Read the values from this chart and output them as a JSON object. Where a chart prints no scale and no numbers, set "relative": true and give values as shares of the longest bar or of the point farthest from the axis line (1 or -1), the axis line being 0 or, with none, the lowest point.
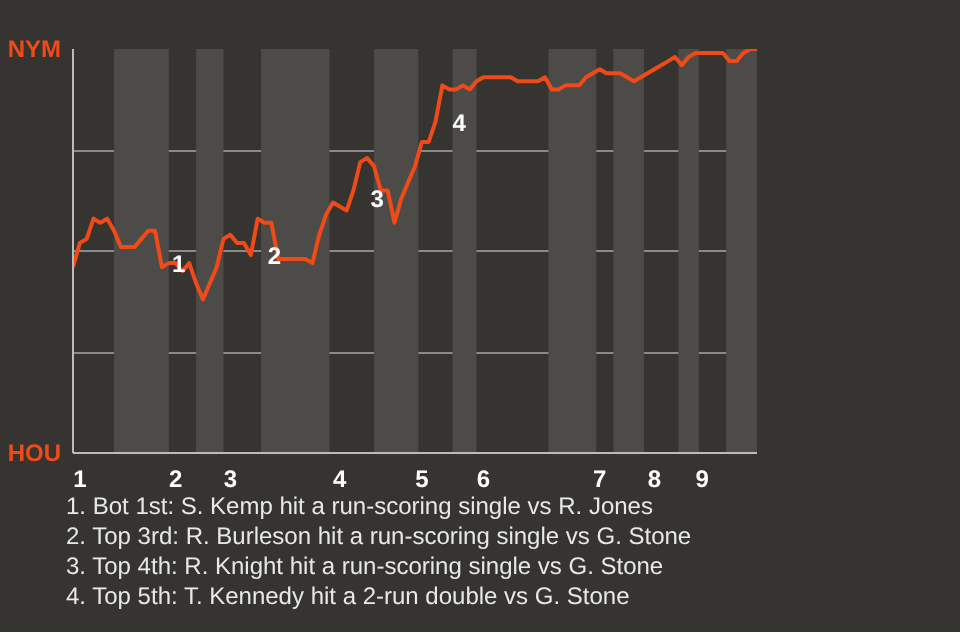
{
  "chart_data": {
    "type": "line",
    "relative": true,
    "categories": [
      null,
      "1",
      null,
      null,
      null,
      null,
      null,
      null,
      null,
      null,
      null,
      null,
      null,
      null,
      null,
      "2",
      null,
      null,
      null,
      null,
      null,
      null,
      null,
      "3",
      null,
      null,
      null,
      null,
      null,
      null,
      null,
      null,
      null,
      null,
      null,
      null,
      null,
      null,
      null,
      "4",
      null,
      null,
      null,
      null,
      null,
      null,
      null,
      null,
      null,
      null,
      null,
      "5",
      null,
      null,
      null,
      null,
      null,
      null,
      null,
      null,
      "6",
      null,
      null,
      null,
      null,
      null,
      null,
      null,
      null,
      null,
      null,
      null,
      null,
      null,
      null,
      null,
      null,
      "7",
      null,
      null,
      null,
      null,
      null,
      null,
      null,
      "8",
      null,
      null,
      null,
      null,
      null,
      null,
      "9",
      null,
      null,
      null,
      null,
      null,
      null,
      null,
      null
    ],
    "series": [
      {
        "color": "#f04a18",
        "values": [
          0.46,
          0.52,
          0.53,
          0.58,
          0.57,
          0.58,
          0.55,
          0.51,
          0.51,
          0.51,
          0.53,
          0.55,
          0.55,
          0.46,
          0.47,
          0.47,
          0.45,
          0.47,
          0.42,
          0.38,
          0.42,
          0.46,
          0.53,
          0.54,
          0.52,
          0.52,
          0.49,
          0.58,
          0.57,
          0.57,
          0.48,
          0.48,
          0.48,
          0.48,
          0.48,
          0.47,
          0.54,
          0.59,
          0.62,
          0.61,
          0.6,
          0.65,
          0.72,
          0.73,
          0.71,
          0.65,
          0.65,
          0.57,
          0.63,
          0.67,
          0.71,
          0.77,
          0.77,
          0.82,
          0.91,
          0.9,
          0.9,
          0.91,
          0.9,
          0.92,
          0.93,
          0.93,
          0.93,
          0.93,
          0.93,
          0.92,
          0.92,
          0.92,
          0.92,
          0.93,
          0.9,
          0.9,
          0.91,
          0.91,
          0.91,
          0.93,
          0.94,
          0.95,
          0.94,
          0.94,
          0.94,
          0.93,
          0.92,
          0.93,
          0.94,
          0.95,
          0.96,
          0.97,
          0.98,
          0.96,
          0.98,
          0.99,
          0.99,
          0.99,
          0.99,
          0.99,
          0.97,
          0.97,
          0.99,
          1.0,
          1.0
        ]
      }
    ],
    "grid": "y",
    "marker": "none",
    "line_style": "solid",
    "annotations": [
      "NYM",
      "HOU",
      "1",
      "2",
      "3",
      "4",
      "1. Bot 1st: S. Kemp hit a run-scoring single vs R. Jones",
      "2. Top 3rd: R. Burleson hit a run-scoring single vs G. Stone",
      "3. Top 4th: R. Knight hit a run-scoring single vs G. Stone",
      "4. Top 5th: T. Kennedy hit a 2-run double vs G. Stone"
    ]
  }
}
